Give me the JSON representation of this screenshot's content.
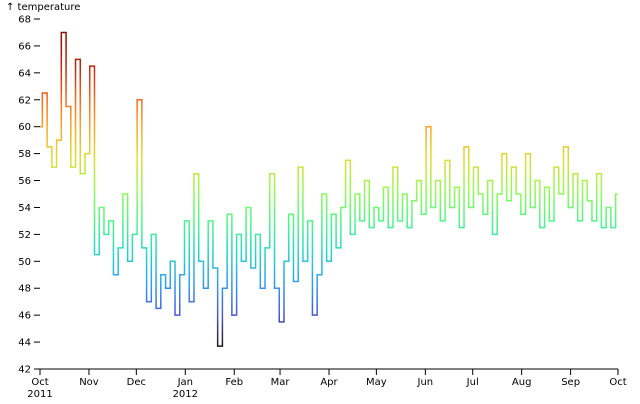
{
  "chart_data": {
    "type": "line",
    "curve": "step",
    "color_scheme": "turbo",
    "y_label": "↑ temperature",
    "x": [
      0,
      3,
      6,
      9,
      12,
      15,
      18,
      21,
      24,
      27,
      30,
      33,
      36,
      39,
      42,
      45,
      48,
      51,
      54,
      57,
      60,
      63,
      66,
      69,
      72,
      75,
      78,
      81,
      84,
      87,
      90,
      93,
      96,
      99,
      102,
      105,
      108,
      111,
      114,
      117,
      120,
      123,
      126,
      129,
      132,
      135,
      138,
      141,
      144,
      147,
      150,
      153,
      156,
      159,
      162,
      165,
      168,
      171,
      174,
      177,
      180,
      183,
      186,
      189,
      192,
      195,
      198,
      201,
      204,
      207,
      210,
      213,
      216,
      219,
      222,
      225,
      228,
      231,
      234,
      237,
      240,
      243,
      246,
      249,
      252,
      255,
      258,
      261,
      264,
      267,
      270,
      273,
      276,
      279,
      282,
      285,
      288,
      291,
      294,
      297,
      300,
      303,
      306,
      309,
      312,
      315,
      318,
      321,
      324,
      327,
      330,
      333,
      336,
      339,
      342,
      345,
      348,
      351,
      354,
      357,
      360,
      363,
      366
    ],
    "values": [
      60,
      62.5,
      58.5,
      57,
      59,
      67,
      61.5,
      57,
      65,
      56.5,
      58,
      64.5,
      50.5,
      54,
      52,
      53,
      49,
      51,
      55,
      50,
      52,
      62,
      51,
      47,
      52,
      46.5,
      49,
      48,
      50,
      46,
      49,
      53,
      47,
      56.5,
      50,
      48,
      53,
      49.5,
      43.7,
      48,
      53.5,
      46,
      52,
      50,
      54,
      49.5,
      52,
      48,
      51,
      56.5,
      48,
      45.5,
      50,
      53.5,
      48.5,
      57,
      50,
      53,
      46,
      49,
      55,
      50,
      53.5,
      51,
      54,
      57.5,
      52,
      55,
      53,
      56,
      52.5,
      54,
      53,
      55.5,
      52.5,
      57,
      53,
      55,
      52.5,
      54.5,
      56,
      53.5,
      60,
      54,
      56,
      53,
      57.5,
      54,
      55.5,
      52.5,
      58.5,
      54,
      57,
      55,
      53.5,
      56,
      52,
      55,
      58,
      54.5,
      57,
      55,
      53.5,
      58,
      54,
      56,
      52.5,
      55.5,
      53,
      57,
      55,
      58.5,
      54,
      56.5,
      53,
      56,
      54.5,
      53,
      56.5,
      52.5,
      54,
      52.5,
      55
    ],
    "xlim": [
      0,
      366
    ],
    "xticks": [
      {
        "value": 0,
        "label": "Oct"
      },
      {
        "value": 31,
        "label": "Nov"
      },
      {
        "value": 61,
        "label": "Dec"
      },
      {
        "value": 92,
        "label": "Jan"
      },
      {
        "value": 123,
        "label": "Feb"
      },
      {
        "value": 152,
        "label": "Mar"
      },
      {
        "value": 183,
        "label": "Apr"
      },
      {
        "value": 213,
        "label": "May"
      },
      {
        "value": 244,
        "label": "Jun"
      },
      {
        "value": 274,
        "label": "Jul"
      },
      {
        "value": 305,
        "label": "Aug"
      },
      {
        "value": 336,
        "label": "Sep"
      },
      {
        "value": 366,
        "label": "Oct"
      }
    ],
    "x_year_labels": [
      {
        "value": 0,
        "label": "2011"
      },
      {
        "value": 92,
        "label": "2012"
      }
    ],
    "ylim": [
      42,
      68
    ],
    "yticks": [
      42,
      44,
      46,
      48,
      50,
      52,
      54,
      56,
      58,
      60,
      62,
      64,
      66,
      68
    ]
  }
}
